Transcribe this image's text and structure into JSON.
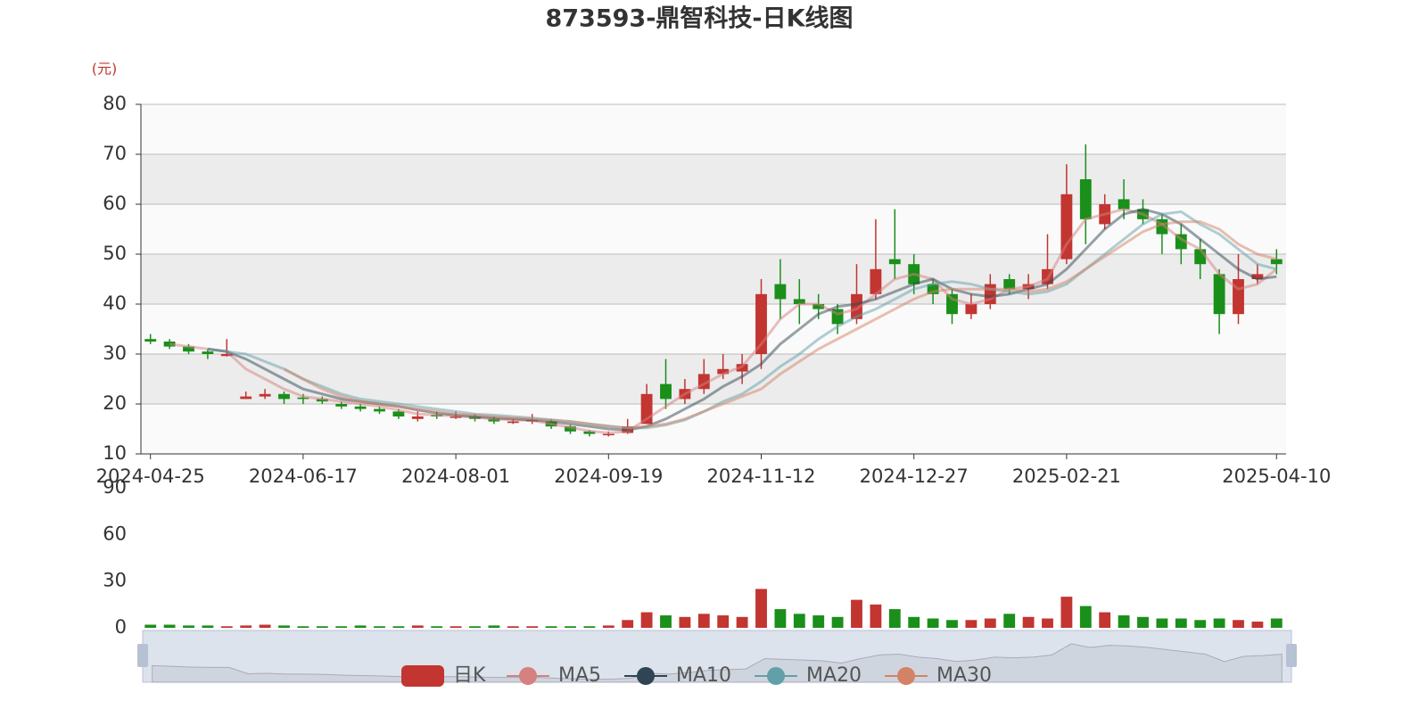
{
  "chart_data": [
    {
      "type": "candlestick",
      "title": "873593-鼎智科技-日K线图",
      "y_unit": "(元)",
      "name": "日K",
      "up_color": "#c23531",
      "down_color": "#1a8f1a",
      "categories": [
        "2024-04-25",
        null,
        null,
        null,
        null,
        null,
        null,
        null,
        "2024-06-17",
        null,
        null,
        null,
        null,
        null,
        null,
        null,
        "2024-08-01",
        null,
        null,
        null,
        null,
        null,
        null,
        null,
        "2024-09-19",
        null,
        null,
        null,
        null,
        null,
        null,
        null,
        "2024-11-12",
        null,
        null,
        null,
        null,
        null,
        null,
        null,
        "2024-12-27",
        null,
        null,
        null,
        null,
        null,
        null,
        null,
        "2025-02-21",
        null,
        null,
        null,
        null,
        null,
        null,
        null,
        null,
        null,
        null,
        "2025-04-10"
      ],
      "open": [
        33,
        32.5,
        31.5,
        30.5,
        29.6,
        21,
        21.5,
        22,
        21.3,
        21,
        20,
        19.5,
        19,
        18.5,
        17,
        17.8,
        17.2,
        17.5,
        17,
        16.2,
        16.5,
        16.5,
        15.5,
        14.5,
        13.8,
        14.2,
        16,
        24,
        21,
        23,
        26,
        26.5,
        30,
        44,
        41,
        40,
        39,
        37,
        42,
        49,
        48,
        44,
        42,
        38,
        40,
        45,
        43,
        44,
        49,
        65,
        56,
        61,
        59,
        57,
        54,
        51,
        46,
        38,
        45,
        49
      ],
      "close": [
        32.5,
        31.5,
        30.5,
        30,
        30,
        21.5,
        22,
        21,
        21,
        20.5,
        19.5,
        19,
        18.5,
        17.5,
        17.5,
        17.5,
        17.5,
        17,
        16.5,
        16.5,
        16.8,
        15.5,
        14.5,
        14,
        14,
        15.5,
        22,
        21,
        23,
        26,
        27,
        28,
        42,
        41,
        40,
        39,
        36,
        42,
        47,
        48,
        44,
        42,
        38,
        40,
        44,
        43,
        44,
        47,
        62,
        57,
        60,
        59,
        57,
        54,
        51,
        48,
        38,
        45,
        46,
        48
      ],
      "low": [
        32,
        31,
        30,
        29,
        29.5,
        21,
        21,
        20,
        20,
        20,
        19,
        18.5,
        18,
        17,
        16.5,
        17,
        17,
        16.5,
        16,
        16,
        16,
        15,
        14,
        13.5,
        13.5,
        14,
        16,
        19,
        20,
        22,
        25,
        24,
        27,
        37,
        36,
        37,
        34,
        36,
        41,
        45,
        42,
        40,
        36,
        37,
        39,
        42,
        41,
        43,
        48,
        52,
        55,
        57,
        56,
        50,
        48,
        45,
        34,
        36,
        44,
        46
      ],
      "high": [
        34,
        33,
        32,
        31,
        33,
        22.5,
        23,
        22.5,
        22,
        21.5,
        20.5,
        20,
        19.5,
        19,
        18.5,
        18.5,
        18.5,
        18,
        17.5,
        17,
        18,
        17,
        15.8,
        14.8,
        14.5,
        17,
        24,
        29,
        25,
        29,
        30,
        30,
        45,
        49,
        45,
        42,
        40,
        48,
        57,
        59,
        50,
        45,
        43,
        42,
        46,
        46,
        46,
        54,
        68,
        72,
        62,
        65,
        61,
        58,
        56,
        53,
        47,
        50,
        48,
        51
      ],
      "ylim": [
        10,
        80
      ],
      "yticks": [
        10,
        20,
        30,
        40,
        50,
        60,
        70,
        80
      ],
      "series": [
        {
          "name": "MA5",
          "color": "#d68080",
          "values": [
            null,
            32,
            31.5,
            31,
            30.5,
            27,
            25,
            23,
            21.5,
            21,
            20.5,
            20,
            19.5,
            18.8,
            18,
            17.8,
            17.6,
            17.3,
            17,
            16.8,
            16.7,
            16,
            15.3,
            14.6,
            14.2,
            14.5,
            17,
            19.5,
            22,
            24,
            26,
            27.5,
            32,
            37,
            40,
            40,
            38,
            39,
            42,
            45,
            46,
            45,
            41,
            40,
            41,
            43,
            43.5,
            45,
            52,
            57,
            58,
            59,
            58,
            56,
            53,
            51,
            46,
            43,
            44,
            47
          ]
        },
        {
          "name": "MA10",
          "color": "#2f4554",
          "values": [
            null,
            null,
            null,
            31,
            30.5,
            29,
            27,
            25,
            23,
            22,
            21,
            20.5,
            20,
            19.5,
            18.8,
            18.2,
            17.8,
            17.5,
            17.2,
            17,
            16.8,
            16.5,
            16,
            15.5,
            15,
            14.8,
            15.5,
            17,
            19,
            21,
            23.5,
            25.5,
            28,
            32,
            35,
            38,
            39.5,
            40,
            41,
            42.5,
            44,
            45,
            43,
            42,
            41.5,
            42,
            43,
            44,
            47,
            51,
            55,
            58,
            59,
            58,
            56,
            53,
            50,
            47,
            45,
            45.5
          ]
        },
        {
          "name": "MA20",
          "color": "#61a0a8",
          "values": [
            null,
            null,
            null,
            31,
            30.5,
            30,
            28.5,
            27,
            25,
            23.5,
            22,
            21,
            20.5,
            20,
            19.5,
            19,
            18.5,
            18,
            17.8,
            17.5,
            17.2,
            16.8,
            16.5,
            16,
            15.6,
            15.2,
            15.2,
            15.8,
            16.8,
            18.5,
            20.5,
            22,
            24.5,
            27.5,
            30,
            33,
            35.5,
            37.5,
            39,
            41,
            43,
            44,
            44.5,
            44,
            43,
            42.5,
            42,
            42.5,
            44,
            47,
            50,
            53,
            56,
            58,
            58.5,
            56,
            54,
            51,
            48,
            47
          ]
        },
        {
          "name": "MA30",
          "color": "#d48265",
          "values": [
            null,
            null,
            null,
            null,
            null,
            null,
            null,
            27,
            25,
            23,
            21.5,
            20.5,
            20,
            19.5,
            19,
            18.5,
            18,
            17.8,
            17.5,
            17.2,
            17,
            16.8,
            16.5,
            16,
            15.5,
            15.2,
            15.5,
            16,
            17,
            18.5,
            20,
            21.5,
            23,
            26,
            28.5,
            31,
            33,
            35,
            37,
            39,
            41,
            42.5,
            43,
            43,
            43,
            43,
            42.5,
            43,
            44.5,
            47,
            49.5,
            52,
            54.5,
            56,
            56.5,
            56.5,
            55,
            52,
            50,
            49
          ]
        }
      ]
    },
    {
      "type": "bar",
      "values": [
        2,
        2,
        1.5,
        1.5,
        1,
        1.5,
        2,
        1.5,
        1,
        1,
        1,
        1.5,
        1,
        1,
        1.5,
        1,
        1,
        1,
        1.5,
        1,
        1,
        1,
        1,
        1,
        1.5,
        5,
        10,
        8,
        7,
        9,
        8,
        7,
        25,
        12,
        9,
        8,
        7,
        18,
        15,
        12,
        7,
        6,
        5,
        5,
        6,
        9,
        7,
        6,
        20,
        14,
        10,
        8,
        7,
        6,
        6,
        5,
        6,
        5,
        4,
        6
      ],
      "ylim": [
        0,
        90
      ],
      "yticks": [
        0,
        30,
        60,
        90
      ]
    }
  ]
}
